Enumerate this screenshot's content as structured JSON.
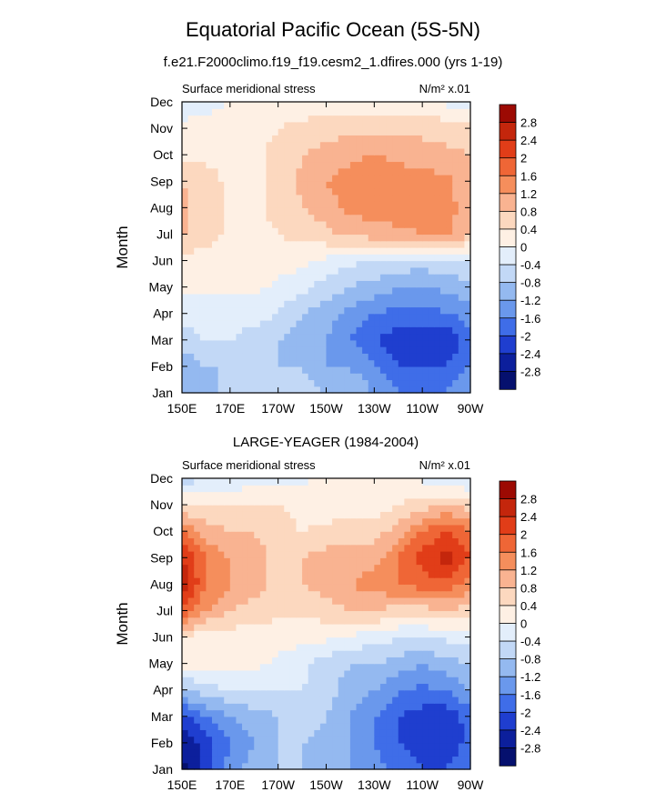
{
  "figure": {
    "title": "Equatorial Pacific Ocean (5S-5N)",
    "subtitle": "f.e21.F2000climo.f19_f19.cesm2_1.dfires.000 (yrs 1-19)"
  },
  "colorbar": {
    "levels": [
      "2.8",
      "2.4",
      "2",
      "1.6",
      "1.2",
      "0.8",
      "0.4",
      "0",
      "-0.4",
      "-0.8",
      "-1.2",
      "-1.6",
      "-2",
      "-2.4",
      "-2.8"
    ],
    "colors": [
      "#9c0a03",
      "#c4260c",
      "#e13d18",
      "#ef6636",
      "#f58e5c",
      "#f9b391",
      "#fcd8bf",
      "#fef0e4",
      "#e3eefb",
      "#c2d8f6",
      "#94b9f0",
      "#6a98ec",
      "#3f6de8",
      "#1f3ecf",
      "#0c1f9c",
      "#05106e"
    ]
  },
  "chart_data": [
    {
      "type": "heatmap",
      "title": "",
      "left_string": "Surface meridional stress",
      "right_string": "N/m² x.01",
      "xlabel": "",
      "ylabel": "Month",
      "x_ticks": [
        "150E",
        "170E",
        "170W",
        "150W",
        "130W",
        "110W",
        "90W"
      ],
      "x_values_deg_east": [
        150,
        170,
        190,
        210,
        230,
        250,
        270
      ],
      "xlim": [
        150,
        270
      ],
      "y_ticks": [
        "Jan",
        "Feb",
        "Mar",
        "Apr",
        "May",
        "Jun",
        "Jul",
        "Aug",
        "Sep",
        "Oct",
        "Nov",
        "Dec"
      ],
      "ylim": [
        1,
        12
      ],
      "lon": [
        150,
        160,
        170,
        180,
        190,
        200,
        210,
        220,
        230,
        240,
        250,
        260,
        270
      ],
      "values": [
        [
          -0.8,
          -1.0,
          -0.6,
          -0.6,
          -0.6,
          -0.6,
          -0.8,
          -0.8,
          -1.2,
          -1.6,
          -1.6,
          -1.6,
          -1.2
        ],
        [
          -1.2,
          -0.8,
          -0.8,
          -0.8,
          -0.8,
          -0.8,
          -1.2,
          -1.2,
          -1.6,
          -2.0,
          -2.0,
          -2.0,
          -1.6
        ],
        [
          -0.6,
          -0.4,
          -0.4,
          -0.6,
          -0.8,
          -1.0,
          -1.2,
          -1.6,
          -2.0,
          -2.2,
          -2.2,
          -2.4,
          -1.8
        ],
        [
          -0.2,
          -0.2,
          -0.2,
          -0.2,
          -0.4,
          -0.8,
          -1.0,
          -1.4,
          -1.6,
          -1.8,
          -1.8,
          -1.6,
          -1.4
        ],
        [
          0.1,
          0.1,
          0.1,
          0.1,
          -0.1,
          -0.3,
          -0.6,
          -0.8,
          -1.0,
          -1.2,
          -1.2,
          -1.1,
          -0.9
        ],
        [
          0.2,
          0.2,
          0.2,
          0.2,
          0.2,
          0.1,
          -0.1,
          -0.3,
          -0.4,
          -0.5,
          -0.6,
          -0.5,
          -0.4
        ],
        [
          0.9,
          0.6,
          0.3,
          0.3,
          0.4,
          0.5,
          0.7,
          0.9,
          1.0,
          1.1,
          1.2,
          1.3,
          0.8
        ],
        [
          0.9,
          0.6,
          0.3,
          0.3,
          0.5,
          0.8,
          1.0,
          1.3,
          1.4,
          1.4,
          1.4,
          1.4,
          0.9
        ],
        [
          0.8,
          0.6,
          0.3,
          0.3,
          0.5,
          0.9,
          1.2,
          1.4,
          1.6,
          1.4,
          1.4,
          1.3,
          0.9
        ],
        [
          0.3,
          0.3,
          0.3,
          0.3,
          0.5,
          0.8,
          1.0,
          1.1,
          1.2,
          1.1,
          1.0,
          0.9,
          0.8
        ],
        [
          0.1,
          0.1,
          0.2,
          0.3,
          0.4,
          0.5,
          0.6,
          0.7,
          0.7,
          0.7,
          0.7,
          0.6,
          0.5
        ],
        [
          -0.2,
          -0.1,
          0.0,
          0.1,
          0.1,
          0.2,
          0.2,
          0.2,
          0.2,
          0.2,
          0.2,
          -0.1,
          -0.3
        ]
      ]
    },
    {
      "type": "heatmap",
      "title": "LARGE-YEAGER (1984-2004)",
      "left_string": "Surface meridional stress",
      "right_string": "N/m² x.01",
      "xlabel": "",
      "ylabel": "Month",
      "x_ticks": [
        "150E",
        "170E",
        "170W",
        "150W",
        "130W",
        "110W",
        "90W"
      ],
      "x_values_deg_east": [
        150,
        170,
        190,
        210,
        230,
        250,
        270
      ],
      "xlim": [
        150,
        270
      ],
      "y_ticks": [
        "Jan",
        "Feb",
        "Mar",
        "Apr",
        "May",
        "Jun",
        "Jul",
        "Aug",
        "Sep",
        "Oct",
        "Nov",
        "Dec"
      ],
      "ylim": [
        1,
        12
      ],
      "lon": [
        150,
        160,
        170,
        180,
        190,
        200,
        210,
        220,
        230,
        240,
        250,
        260,
        270
      ],
      "values": [
        [
          -2.9,
          -2.2,
          -1.4,
          -1.0,
          -0.8,
          -0.8,
          -1.0,
          -1.2,
          -1.4,
          -1.8,
          -2.0,
          -2.0,
          -1.6
        ],
        [
          -2.8,
          -2.2,
          -1.6,
          -1.2,
          -0.8,
          -0.8,
          -1.0,
          -1.2,
          -1.6,
          -2.0,
          -2.2,
          -2.4,
          -1.8
        ],
        [
          -2.2,
          -1.6,
          -1.2,
          -1.0,
          -0.8,
          -0.4,
          -0.8,
          -1.2,
          -1.6,
          -2.0,
          -2.2,
          -2.3,
          -1.8
        ],
        [
          -0.8,
          -0.6,
          -0.4,
          -0.4,
          -0.4,
          -0.4,
          -0.6,
          -1.0,
          -1.2,
          -1.6,
          -1.7,
          -1.6,
          -1.2
        ],
        [
          0.1,
          0.2,
          0.2,
          0.1,
          -0.1,
          -0.3,
          -0.6,
          -0.8,
          -0.8,
          -1.0,
          -1.2,
          -1.0,
          -0.8
        ],
        [
          0.3,
          0.2,
          0.2,
          0.2,
          0.2,
          0.1,
          0.1,
          -0.1,
          -0.2,
          -0.4,
          -0.4,
          -0.3,
          -0.2
        ],
        [
          2.0,
          1.2,
          0.8,
          0.6,
          0.5,
          0.5,
          0.6,
          0.8,
          0.8,
          0.6,
          0.6,
          0.8,
          0.6
        ],
        [
          2.8,
          1.6,
          1.2,
          1.0,
          0.6,
          0.8,
          1.0,
          1.2,
          1.4,
          1.6,
          1.8,
          1.8,
          1.4
        ],
        [
          2.4,
          1.6,
          1.2,
          1.0,
          0.6,
          0.8,
          1.0,
          1.0,
          1.0,
          1.6,
          2.2,
          2.6,
          2.0
        ],
        [
          1.6,
          1.0,
          0.8,
          0.8,
          0.6,
          0.4,
          0.5,
          0.6,
          0.6,
          1.0,
          1.6,
          2.0,
          1.6
        ],
        [
          0.4,
          0.4,
          0.4,
          0.4,
          0.4,
          0.2,
          0.2,
          0.2,
          0.2,
          0.4,
          0.6,
          0.8,
          0.6
        ],
        [
          -0.6,
          -0.4,
          -0.3,
          -0.2,
          -0.1,
          -0.1,
          0.1,
          0.1,
          0.2,
          0.1,
          -0.1,
          -0.3,
          -0.4
        ]
      ]
    }
  ]
}
